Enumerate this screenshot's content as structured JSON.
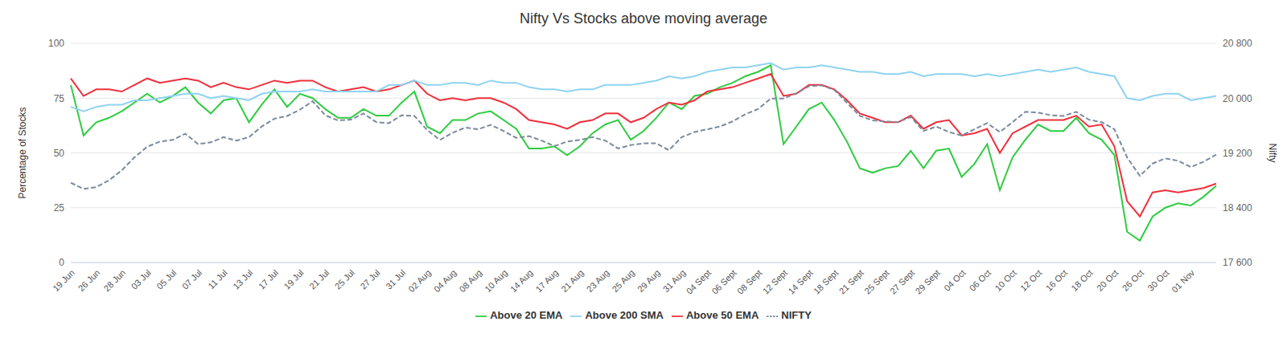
{
  "chart_data": {
    "type": "line",
    "title": "Nifty Vs Stocks above moving average",
    "y_label": "Percentage of Stocks",
    "y2_label": "Nifty",
    "categories": [
      "19 Jun",
      null,
      "26 Jun",
      null,
      "28 Jun",
      null,
      "03 Jul",
      null,
      "05 Jul",
      null,
      "07 Jul",
      null,
      "11 Jul",
      null,
      "13 Jul",
      null,
      "17 Jul",
      null,
      "19 Jul",
      null,
      "21 Jul",
      null,
      "25 Jul",
      null,
      "27 Jul",
      null,
      "31 Jul",
      null,
      "02 Aug",
      null,
      "04 Aug",
      null,
      "08 Aug",
      null,
      "10 Aug",
      null,
      "14 Aug",
      null,
      "17 Aug",
      null,
      "21 Aug",
      null,
      "23 Aug",
      null,
      "25 Aug",
      null,
      "29 Aug",
      null,
      "31 Aug",
      null,
      "04 Sept",
      null,
      "06 Sept",
      null,
      "08 Sept",
      null,
      "12 Sept",
      null,
      "14 Sept",
      null,
      "18 Sept",
      null,
      "21 Sept",
      null,
      "25 Sept",
      null,
      "27 Sept",
      null,
      "29 Sept",
      null,
      "04 Oct",
      null,
      "06 Oct",
      null,
      "10 Oct",
      null,
      "12 Oct",
      null,
      "16 Oct",
      null,
      "18 Oct",
      null,
      "20 Oct",
      null,
      "26 Oct",
      null,
      "30 Oct",
      null,
      "01 Nov",
      null,
      null
    ],
    "series": [
      {
        "name": "Above 20 EMA",
        "color": "#2ecc40",
        "line_style": "solid",
        "values": [
          81,
          58,
          64,
          66,
          69,
          73,
          77,
          73,
          76,
          80,
          73,
          68,
          74,
          75,
          64,
          72,
          79,
          71,
          77,
          75,
          70,
          66,
          66,
          70,
          67,
          67,
          73,
          78,
          62,
          59,
          65,
          65,
          68,
          69,
          65,
          61,
          52,
          52,
          53,
          49,
          53,
          59,
          63,
          65,
          56,
          60,
          66,
          73,
          70,
          76,
          77,
          80,
          82,
          85,
          87,
          90,
          54,
          62,
          70,
          73,
          65,
          55,
          43,
          41,
          43,
          44,
          51,
          43,
          51,
          52,
          39,
          45,
          54,
          33,
          48,
          56,
          63,
          60,
          60,
          66,
          59,
          56,
          49,
          14,
          10,
          21,
          25,
          27,
          26,
          30,
          35
        ]
      },
      {
        "name": "Above 50 EMA",
        "color": "#f0303c",
        "line_style": "solid",
        "values": [
          84,
          76,
          79,
          79,
          78,
          81,
          84,
          82,
          83,
          84,
          83,
          80,
          82,
          80,
          79,
          81,
          83,
          82,
          83,
          83,
          80,
          78,
          79,
          80,
          78,
          79,
          81,
          83,
          77,
          74,
          75,
          74,
          75,
          75,
          73,
          70,
          65,
          64,
          63,
          61,
          64,
          65,
          68,
          68,
          64,
          66,
          70,
          73,
          72,
          74,
          78,
          79,
          80,
          82,
          84,
          86,
          76,
          77,
          81,
          81,
          79,
          74,
          68,
          66,
          64,
          64,
          67,
          61,
          64,
          65,
          58,
          59,
          61,
          50,
          59,
          62,
          65,
          65,
          65,
          67,
          62,
          63,
          53,
          28,
          21,
          32,
          33,
          32,
          33,
          34,
          36
        ]
      },
      {
        "name": "Above 200 SMA",
        "color": "#8fd3f0",
        "line_style": "solid",
        "values": [
          71,
          69,
          71,
          72,
          72,
          74,
          74,
          75,
          76,
          77,
          77,
          75,
          76,
          75,
          74,
          77,
          78,
          78,
          78,
          79,
          78,
          78,
          78,
          78,
          78,
          81,
          81,
          83,
          81,
          81,
          82,
          82,
          81,
          83,
          82,
          82,
          80,
          79,
          79,
          78,
          79,
          79,
          81,
          81,
          81,
          82,
          83,
          85,
          84,
          85,
          87,
          88,
          89,
          89,
          90,
          91,
          88,
          89,
          89,
          90,
          89,
          88,
          87,
          87,
          86,
          86,
          87,
          85,
          86,
          86,
          86,
          85,
          86,
          85,
          86,
          87,
          88,
          87,
          88,
          89,
          87,
          86,
          85,
          75,
          74,
          76,
          77,
          77,
          74,
          75,
          76
        ]
      },
      {
        "name": "NIFTY",
        "color": "#7b8a9e",
        "line_style": "dashed",
        "axis": "y2",
        "values": [
          18765,
          18675,
          18700,
          18800,
          18945,
          19135,
          19290,
          19365,
          19390,
          19480,
          19330,
          19355,
          19430,
          19380,
          19430,
          19585,
          19700,
          19740,
          19830,
          19955,
          19750,
          19675,
          19685,
          19775,
          19650,
          19635,
          19750,
          19740,
          19535,
          19390,
          19495,
          19570,
          19545,
          19610,
          19520,
          19420,
          19445,
          19380,
          19300,
          19365,
          19390,
          19430,
          19380,
          19265,
          19315,
          19340,
          19340,
          19240,
          19430,
          19505,
          19545,
          19585,
          19660,
          19765,
          19840,
          19995,
          19995,
          20070,
          20175,
          20185,
          20120,
          19930,
          19740,
          19675,
          19660,
          19650,
          19725,
          19520,
          19585,
          19505,
          19455,
          19545,
          19635,
          19505,
          19650,
          19800,
          19790,
          19750,
          19740,
          19800,
          19685,
          19650,
          19545,
          19135,
          18865,
          19045,
          19120,
          19085,
          18995,
          19070,
          19175
        ]
      }
    ],
    "ylim": [
      0,
      100
    ],
    "yticks": [
      0,
      25,
      50,
      75,
      100
    ],
    "y2lim": [
      17600,
      20800
    ],
    "y2ticks": [
      {
        "value": 17600,
        "label": "17 600"
      },
      {
        "value": 18400,
        "label": "18 400"
      },
      {
        "value": 19200,
        "label": "19 200"
      },
      {
        "value": 20000,
        "label": "20 000"
      },
      {
        "value": 20800,
        "label": "20 800"
      }
    ],
    "grid": true,
    "legend": "bottom"
  }
}
